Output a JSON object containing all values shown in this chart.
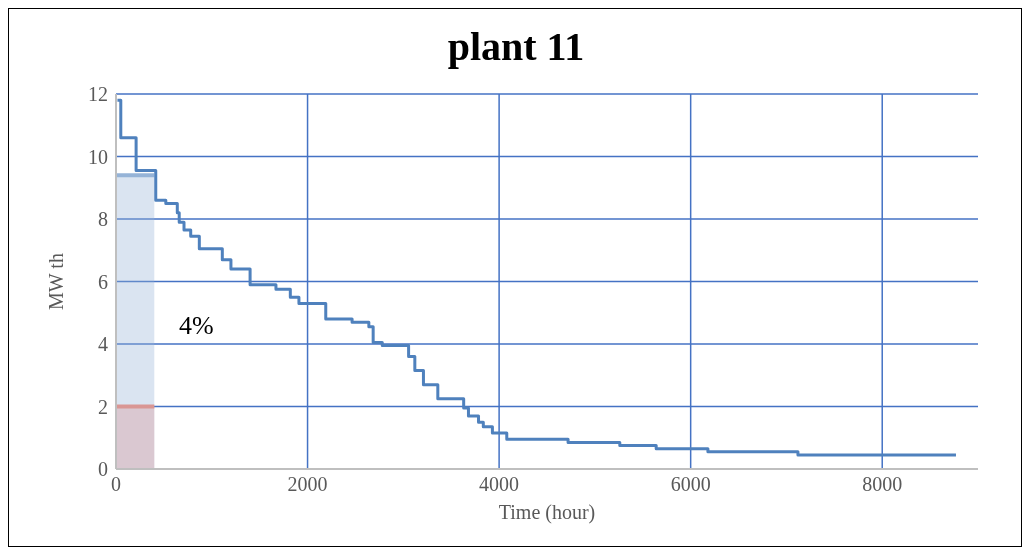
{
  "chart_data": {
    "type": "step",
    "title": "plant 11",
    "xlabel": "Time (hour)",
    "ylabel": "MW th",
    "xlim": [
      0,
      9000
    ],
    "xticks": [
      0,
      2000,
      4000,
      6000,
      8000
    ],
    "ylim": [
      0,
      12
    ],
    "yticks": [
      0,
      2,
      4,
      6,
      8,
      10,
      12
    ],
    "grid": true,
    "marker": "none",
    "annotations": [
      "4%"
    ],
    "series": [
      {
        "type": "area",
        "color": "#95b3d7",
        "x": [
          0,
          400
        ],
        "values": [
          9.4,
          9.4
        ]
      },
      {
        "type": "area",
        "color": "#d99694",
        "x": [
          0,
          400
        ],
        "values": [
          2,
          2
        ]
      },
      {
        "color": "#4f81bd",
        "x": [
          15,
          50,
          210,
          415,
          520,
          640,
          660,
          710,
          780,
          870,
          1110,
          1200,
          1400,
          1670,
          1820,
          1910,
          2190,
          2465,
          2640,
          2685,
          2780,
          3055,
          3120,
          3210,
          3360,
          3630,
          3680,
          3785,
          3835,
          3930,
          4080,
          4720,
          5260,
          5640,
          6180,
          7120,
          8770
        ],
        "values": [
          11.8,
          10.6,
          9.55,
          8.6,
          8.5,
          8.2,
          7.9,
          7.65,
          7.45,
          7.05,
          6.7,
          6.4,
          5.9,
          5.75,
          5.5,
          5.3,
          4.8,
          4.7,
          4.55,
          4.05,
          3.95,
          3.6,
          3.15,
          2.7,
          2.25,
          1.95,
          1.7,
          1.5,
          1.35,
          1.15,
          0.95,
          0.85,
          0.75,
          0.65,
          0.55,
          0.45,
          0.45
        ]
      }
    ]
  }
}
